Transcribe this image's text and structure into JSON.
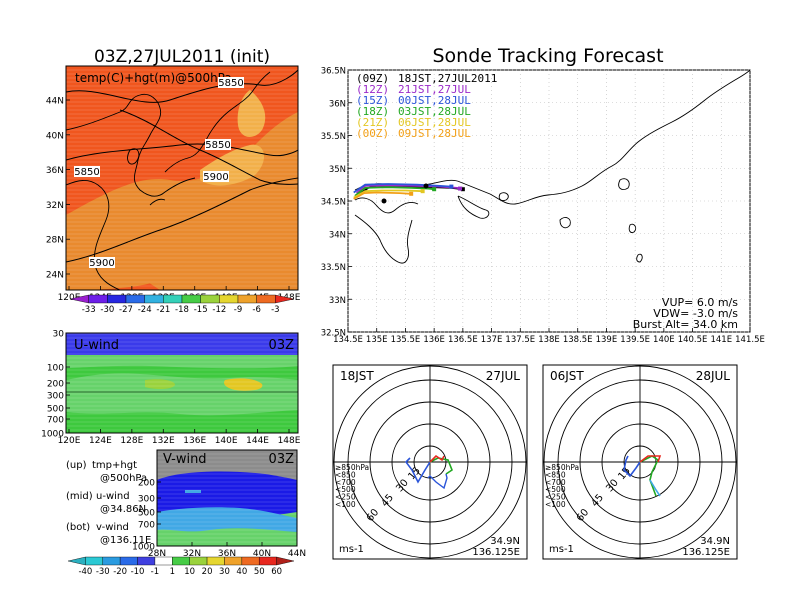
{
  "colors": {
    "temp_bg": "#f0561e",
    "temp_warm": "#e98a2e",
    "temp_warmer": "#f2b04a",
    "uwind_top": "#3a3aea",
    "uwind_mid": "#66d26a",
    "uwind_low": "#3ec93e",
    "vwind_bg": "#8c8c8c",
    "vwind_blue": "#1a1ae6",
    "vwind_cyan": "#41a8e5",
    "track_09z": "#000000",
    "track_12z": "#9b2bc9",
    "track_15z": "#2b55d9",
    "track_18z": "#22a822",
    "track_21z": "#e3c722",
    "track_00z": "#f2a018"
  },
  "chart_data": [
    {
      "id": "upper_map",
      "type": "heatmap",
      "title": "03Z,27JUL2011 (init)",
      "label": "temp(C)+hgt(m)@500hPa",
      "x_ticks": [
        "120E",
        "124E",
        "128E",
        "132E",
        "136E",
        "140E",
        "144E",
        "148E"
      ],
      "y_ticks": [
        "44N",
        "40N",
        "36N",
        "32N",
        "28N",
        "24N"
      ],
      "contour_labels": [
        "5850",
        "5850",
        "5850",
        "5900",
        "5900"
      ],
      "colorbar_labels": [
        "-33",
        "-30",
        "-27",
        "-24",
        "-21",
        "-18",
        "-15",
        "-12",
        "-9",
        "-6",
        "-3"
      ],
      "colorbar_colors": [
        "#9a1fcf",
        "#6d1fe8",
        "#2727e0",
        "#2a6be8",
        "#31b1e0",
        "#34d0b8",
        "#46cc46",
        "#9ad23c",
        "#e5d630",
        "#efa22b",
        "#ee6a22",
        "#e8281f"
      ]
    },
    {
      "id": "u_wind",
      "type": "heatmap",
      "label": "U-wind",
      "time": "03Z",
      "x_ticks": [
        "120E",
        "124E",
        "128E",
        "132E",
        "136E",
        "140E",
        "144E",
        "148E"
      ],
      "y_ticks": [
        "30",
        "100",
        "200",
        "300",
        "500",
        "700",
        "1000"
      ]
    },
    {
      "id": "v_wind",
      "type": "heatmap",
      "label": "V-wind",
      "time": "03Z",
      "x_ticks": [
        "28N",
        "32N",
        "36N",
        "40N",
        "44N"
      ],
      "y_ticks": [
        "200",
        "300",
        "500",
        "700",
        "1000"
      ],
      "colorbar_labels": [
        "-40",
        "-30",
        "-20",
        "-10",
        "-1",
        "1",
        "10",
        "20",
        "30",
        "40",
        "50",
        "60"
      ],
      "colorbar_colors": [
        "#2bb0c0",
        "#2bc9d4",
        "#2a9be0",
        "#2a6be8",
        "#4040e0",
        "#ffffff",
        "#46cc46",
        "#9ad23c",
        "#e5d630",
        "#efa22b",
        "#ee6a22",
        "#e8281f",
        "#b0201a"
      ],
      "notes": [
        {
          "a": "(up)",
          "b": "tmp+hgt",
          "c": "@500hPa"
        },
        {
          "a": "(mid)",
          "b": "u-wind",
          "c": "@34.86N"
        },
        {
          "a": "(bot)",
          "b": "v-wind",
          "c": "@136.11E"
        }
      ]
    },
    {
      "id": "track",
      "type": "line",
      "title": "Sonde Tracking Forecast",
      "x_ticks": [
        "134.5E",
        "135E",
        "135.5E",
        "136E",
        "136.5E",
        "137E",
        "137.5E",
        "138E",
        "138.5E",
        "139E",
        "139.5E",
        "140E",
        "140.5E",
        "141E",
        "141.5E"
      ],
      "y_ticks": [
        "36.5N",
        "36N",
        "35.5N",
        "35N",
        "34.5N",
        "34N",
        "33.5N",
        "33N",
        "32.5N"
      ],
      "xlim": [
        134.5,
        141.5
      ],
      "ylim": [
        32.5,
        36.5
      ],
      "legend": [
        {
          "code": "(09Z)",
          "text": "18JST,27JUL2011",
          "color": "#000000"
        },
        {
          "code": "(12Z)",
          "text": "21JST,27JUL",
          "color": "#9b2bc9"
        },
        {
          "code": "(15Z)",
          "text": "00JST,28JUL",
          "color": "#2b55d9"
        },
        {
          "code": "(18Z)",
          "text": "03JST,28JUL",
          "color": "#22a822"
        },
        {
          "code": "(21Z)",
          "text": "06JST,28JUL",
          "color": "#e3c722"
        },
        {
          "code": "(00Z)",
          "text": "09JST,28JUL",
          "color": "#f2a018"
        }
      ],
      "params": [
        "VUP= 6.0 m/s",
        "VDW= -3.0 m/s",
        "Burst Alt= 34.0 km"
      ],
      "series": [
        {
          "color": "#000000",
          "x": [
            134.7,
            134.85,
            135.0,
            135.5,
            136.0,
            136.3,
            136.5
          ],
          "y": [
            34.6,
            34.7,
            34.73,
            34.72,
            34.71,
            34.7,
            34.68
          ]
        },
        {
          "color": "#9b2bc9",
          "x": [
            134.65,
            134.8,
            135.2,
            135.7,
            136.1,
            136.4,
            136.45
          ],
          "y": [
            34.62,
            34.73,
            34.74,
            34.73,
            34.72,
            34.7,
            34.69
          ]
        },
        {
          "color": "#2b55d9",
          "x": [
            134.6,
            134.8,
            135.2,
            135.7,
            136.1,
            136.3
          ],
          "y": [
            34.63,
            34.75,
            34.76,
            34.75,
            34.73,
            34.72
          ]
        },
        {
          "color": "#22a822",
          "x": [
            134.62,
            134.8,
            135.2,
            135.6,
            135.9,
            136.0
          ],
          "y": [
            34.58,
            34.7,
            34.71,
            34.7,
            34.69,
            34.68
          ]
        },
        {
          "color": "#e3c722",
          "x": [
            134.6,
            134.8,
            135.1,
            135.5,
            135.8
          ],
          "y": [
            34.55,
            34.65,
            34.66,
            34.66,
            34.65
          ]
        },
        {
          "color": "#f2a018",
          "x": [
            134.6,
            134.78,
            135.0,
            135.4,
            135.6
          ],
          "y": [
            34.53,
            34.62,
            34.63,
            34.62,
            34.61
          ]
        }
      ]
    },
    {
      "id": "hodo_1",
      "type": "line",
      "label_left": "18JST",
      "label_right": "27JUL",
      "unit": "ms-1",
      "loc1": "34.9N",
      "loc2": "136.125E",
      "ring_labels": [
        "15",
        "30",
        "45",
        "60"
      ],
      "level_labels": [
        "≥850hPa",
        "<850",
        "<700",
        "<500",
        "<250",
        "<100"
      ]
    },
    {
      "id": "hodo_2",
      "type": "line",
      "label_left": "06JST",
      "label_right": "28JUL",
      "unit": "ms-1",
      "loc1": "34.9N",
      "loc2": "136.125E",
      "ring_labels": [
        "15",
        "30",
        "45",
        "60"
      ],
      "level_labels": [
        "≥850hPa",
        "<850",
        "<700",
        "<500",
        "<250",
        "<100"
      ]
    }
  ]
}
